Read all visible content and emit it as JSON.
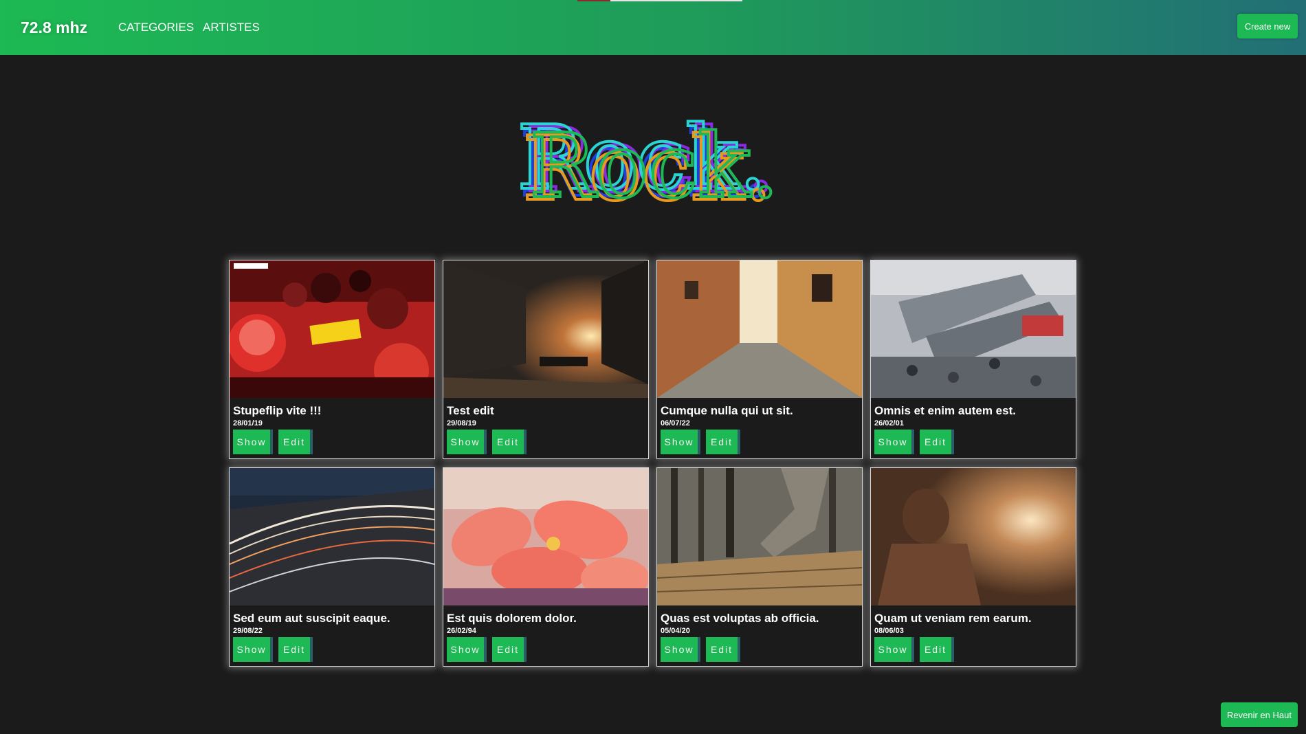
{
  "colors": {
    "accent": "#1db954",
    "navbar_gradient_end": "#226f76",
    "background": "#1c1b1b",
    "button_edge": "#2b5e66"
  },
  "navbar": {
    "brand": "72.8 mhz",
    "links": [
      "CATEGORIES",
      "ARTISTES"
    ],
    "create_label": "Create new"
  },
  "page_title": "Rock.",
  "cards": [
    {
      "title": "Stupeflip vite !!!",
      "date": "28/01/19",
      "show_label": "Show",
      "edit_label": "Edit",
      "image": "album-art-red-crowd"
    },
    {
      "title": "Test edit",
      "date": "29/08/19",
      "show_label": "Show",
      "edit_label": "Edit",
      "image": "city-street-sunset"
    },
    {
      "title": "Cumque nulla qui ut sit.",
      "date": "06/07/22",
      "show_label": "Show",
      "edit_label": "Edit",
      "image": "cobblestone-alley"
    },
    {
      "title": "Omnis et enim autem est.",
      "date": "26/02/01",
      "show_label": "Show",
      "edit_label": "Edit",
      "image": "crowded-station-escalators"
    },
    {
      "title": "Sed eum aut suscipit eaque.",
      "date": "29/08/22",
      "show_label": "Show",
      "edit_label": "Edit",
      "image": "highway-light-trails"
    },
    {
      "title": "Est quis dolorem dolor.",
      "date": "26/02/94",
      "show_label": "Show",
      "edit_label": "Edit",
      "image": "pink-flowers"
    },
    {
      "title": "Quas est voluptas ab officia.",
      "date": "05/04/20",
      "show_label": "Show",
      "edit_label": "Edit",
      "image": "person-walking-boardwalk"
    },
    {
      "title": "Quam ut veniam rem earum.",
      "date": "08/06/03",
      "show_label": "Show",
      "edit_label": "Edit",
      "image": "woman-sunset-backlit"
    }
  ],
  "back_to_top_label": "Revenir en Haut"
}
